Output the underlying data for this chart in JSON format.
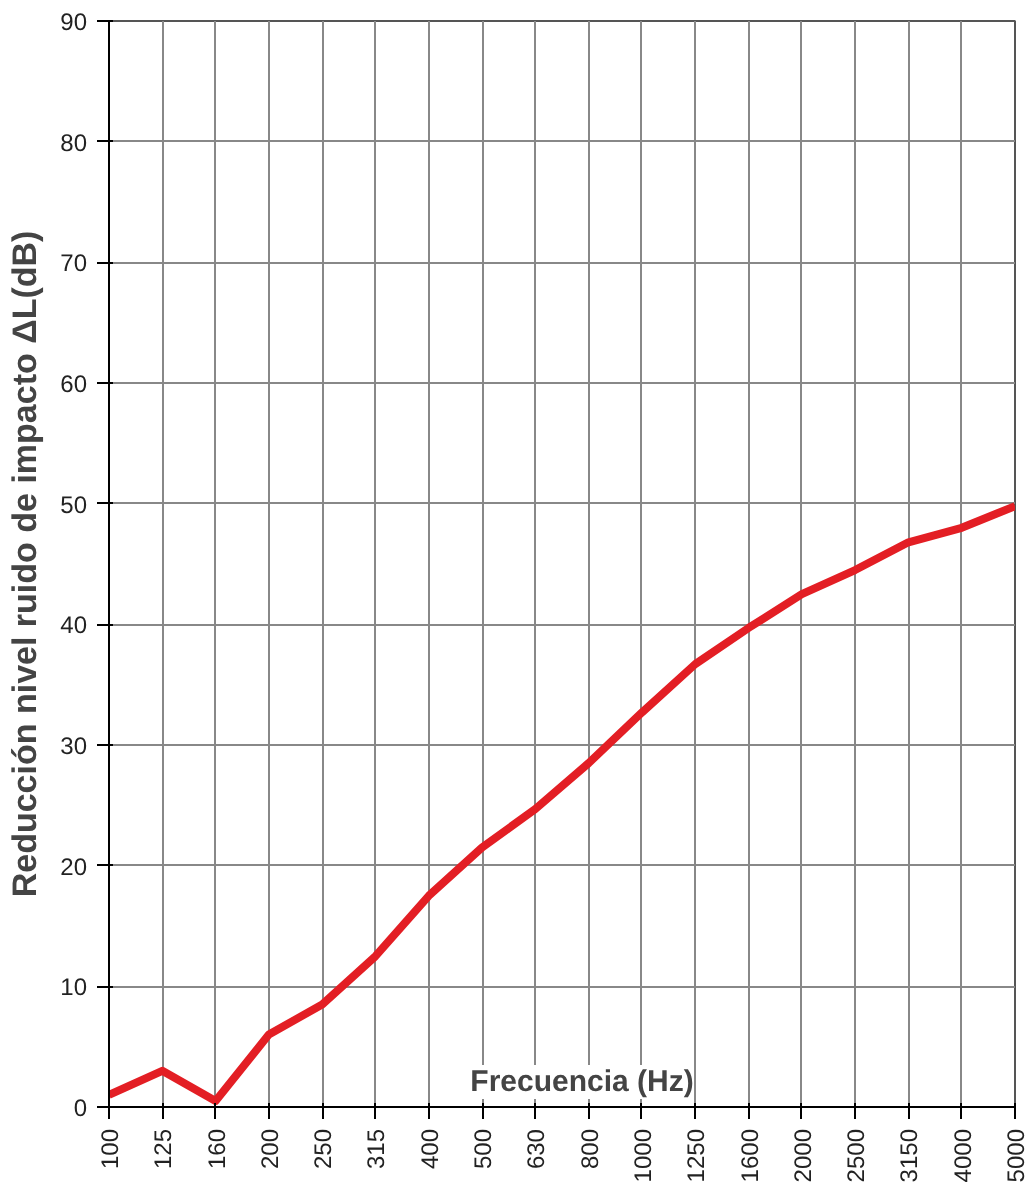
{
  "chart_data": {
    "type": "line",
    "xlabel": "Frecuencia (Hz)",
    "ylabel": "Reducción nivel ruido de impacto ΔL(dB)",
    "categories": [
      "100",
      "125",
      "160",
      "200",
      "250",
      "315",
      "400",
      "500",
      "630",
      "800",
      "1000",
      "1250",
      "1600",
      "2000",
      "2500",
      "3150",
      "4000",
      "5000"
    ],
    "series": [
      {
        "color": "#e31e24",
        "values": [
          1,
          3,
          0.5,
          6,
          8.5,
          12.5,
          17.5,
          21.5,
          24.7,
          28.5,
          32.7,
          36.7,
          39.7,
          42.5,
          44.5,
          46.8,
          48,
          49.8
        ]
      }
    ],
    "ylim": [
      0,
      90
    ],
    "yticks": [
      0,
      10,
      20,
      30,
      40,
      50,
      60,
      70,
      80,
      90
    ],
    "grid": true,
    "marker": "none",
    "line_style": "solid"
  }
}
